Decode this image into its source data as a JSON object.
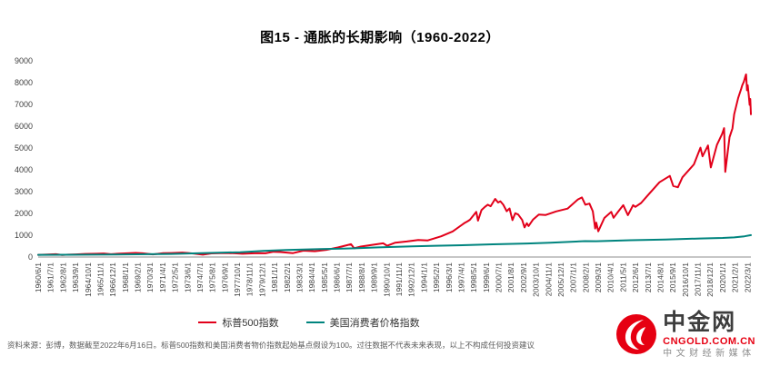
{
  "title": "图15 - 通胀的长期影响（1960-2022）",
  "chart_data": {
    "type": "line",
    "title": "图15 - 通胀的长期影响（1960-2022）",
    "grid": false,
    "legend_position": "bottom",
    "ylim": [
      0,
      9000
    ],
    "ytick_interval": 1000,
    "y_ticks": [
      0,
      1000,
      2000,
      3000,
      4000,
      5000,
      6000,
      7000,
      8000,
      9000
    ],
    "x_range": [
      1960.417,
      2022.458
    ],
    "x_tick_labels": [
      "1960/6/1",
      "1961/7/1",
      "1962/8/1",
      "1963/9/1",
      "1964/10/1",
      "1965/11/1",
      "1966/12/1",
      "1968/1/1",
      "1969/2/1",
      "1970/3/1",
      "1971/4/1",
      "1972/5/1",
      "1973/6/1",
      "1974/7/1",
      "1975/8/1",
      "1976/9/1",
      "1977/10/1",
      "1978/11/1",
      "1979/12/1",
      "1981/1/1",
      "1982/2/1",
      "1983/3/1",
      "1984/4/1",
      "1985/5/1",
      "1986/6/1",
      "1987/7/1",
      "1988/8/1",
      "1989/9/1",
      "1990/10/1",
      "1991/11/1",
      "1992/12/1",
      "1994/1/1",
      "1995/2/1",
      "1996/3/1",
      "1997/4/1",
      "1998/5/1",
      "1999/6/1",
      "2000/7/1",
      "2001/8/1",
      "2002/9/1",
      "2003/10/1",
      "2004/11/1",
      "2005/12/1",
      "2007/1/1",
      "2008/2/1",
      "2009/3/1",
      "2010/4/1",
      "2011/5/1",
      "2012/6/1",
      "2013/7/1",
      "2014/8/1",
      "2015/9/1",
      "2016/10/1",
      "2017/11/1",
      "2018/12/1",
      "2020/1/1",
      "2021/2/1",
      "2022/3/1"
    ],
    "base_value_note": "起始基点假设为100",
    "series": [
      {
        "name": "标普500指数",
        "color": "#e2001a",
        "width": 2,
        "points": [
          [
            1960.42,
            100
          ],
          [
            1961.0,
            110
          ],
          [
            1961.96,
            128
          ],
          [
            1962.5,
            95
          ],
          [
            1963.0,
            110
          ],
          [
            1963.7,
            122
          ],
          [
            1964.5,
            140
          ],
          [
            1965.5,
            148
          ],
          [
            1966.12,
            163
          ],
          [
            1966.75,
            130
          ],
          [
            1967.5,
            158
          ],
          [
            1968.9,
            188
          ],
          [
            1969.5,
            170
          ],
          [
            1970.4,
            122
          ],
          [
            1971.3,
            176
          ],
          [
            1972.0,
            182
          ],
          [
            1972.96,
            206
          ],
          [
            1973.5,
            182
          ],
          [
            1974.0,
            160
          ],
          [
            1974.75,
            110
          ],
          [
            1975.5,
            166
          ],
          [
            1976.7,
            184
          ],
          [
            1977.5,
            172
          ],
          [
            1978.2,
            152
          ],
          [
            1979.5,
            178
          ],
          [
            1980.2,
            172
          ],
          [
            1980.9,
            243
          ],
          [
            1981.5,
            230
          ],
          [
            1982.6,
            178
          ],
          [
            1983.5,
            290
          ],
          [
            1984.5,
            266
          ],
          [
            1985.5,
            330
          ],
          [
            1986.5,
            437
          ],
          [
            1987.65,
            588
          ],
          [
            1987.92,
            400
          ],
          [
            1988.5,
            478
          ],
          [
            1989.5,
            560
          ],
          [
            1990.45,
            628
          ],
          [
            1990.8,
            516
          ],
          [
            1991.5,
            660
          ],
          [
            1992.5,
            712
          ],
          [
            1993.5,
            782
          ],
          [
            1994.3,
            758
          ],
          [
            1995.5,
            950
          ],
          [
            1996.5,
            1175
          ],
          [
            1997.5,
            1550
          ],
          [
            1997.8,
            1640
          ],
          [
            1998.0,
            1710
          ],
          [
            1998.55,
            2070
          ],
          [
            1998.7,
            1671
          ],
          [
            1999.0,
            2150
          ],
          [
            1999.3,
            2300
          ],
          [
            1999.55,
            2400
          ],
          [
            1999.8,
            2330
          ],
          [
            2000.2,
            2665
          ],
          [
            2000.45,
            2500
          ],
          [
            2000.65,
            2560
          ],
          [
            2000.9,
            2400
          ],
          [
            2001.2,
            2100
          ],
          [
            2001.45,
            2230
          ],
          [
            2001.7,
            1690
          ],
          [
            2001.95,
            2010
          ],
          [
            2002.2,
            1950
          ],
          [
            2002.55,
            1700
          ],
          [
            2002.75,
            1360
          ],
          [
            2002.95,
            1550
          ],
          [
            2003.1,
            1420
          ],
          [
            2003.5,
            1720
          ],
          [
            2004.0,
            1950
          ],
          [
            2004.6,
            1930
          ],
          [
            2005.5,
            2090
          ],
          [
            2006.5,
            2220
          ],
          [
            2007.4,
            2640
          ],
          [
            2007.75,
            2733
          ],
          [
            2008.05,
            2400
          ],
          [
            2008.4,
            2450
          ],
          [
            2008.7,
            2100
          ],
          [
            2008.9,
            1310
          ],
          [
            2009.0,
            1580
          ],
          [
            2009.17,
            1180
          ],
          [
            2009.7,
            1790
          ],
          [
            2010.3,
            2070
          ],
          [
            2010.5,
            1800
          ],
          [
            2010.9,
            2080
          ],
          [
            2011.35,
            2380
          ],
          [
            2011.75,
            1920
          ],
          [
            2012.2,
            2380
          ],
          [
            2012.4,
            2300
          ],
          [
            2012.9,
            2480
          ],
          [
            2013.5,
            2840
          ],
          [
            2014.5,
            3430
          ],
          [
            2015.4,
            3720
          ],
          [
            2015.7,
            3260
          ],
          [
            2016.1,
            3200
          ],
          [
            2016.5,
            3660
          ],
          [
            2017.5,
            4250
          ],
          [
            2018.07,
            5016
          ],
          [
            2018.25,
            4620
          ],
          [
            2018.72,
            5117
          ],
          [
            2018.97,
            4110
          ],
          [
            2019.5,
            5140
          ],
          [
            2019.95,
            5640
          ],
          [
            2020.12,
            5913
          ],
          [
            2020.23,
            3910
          ],
          [
            2020.6,
            5500
          ],
          [
            2020.85,
            5900
          ],
          [
            2021.0,
            6550
          ],
          [
            2021.35,
            7300
          ],
          [
            2021.6,
            7700
          ],
          [
            2021.7,
            7870
          ],
          [
            2021.85,
            8050
          ],
          [
            2022.0,
            8330
          ],
          [
            2022.04,
            8380
          ],
          [
            2022.12,
            7650
          ],
          [
            2022.18,
            7880
          ],
          [
            2022.28,
            7350
          ],
          [
            2022.35,
            6980
          ],
          [
            2022.4,
            7250
          ],
          [
            2022.46,
            6550
          ]
        ]
      },
      {
        "name": "美国消费者价格指数",
        "color": "#00847e",
        "width": 2,
        "points": [
          [
            1960.42,
            100
          ],
          [
            1963,
            104
          ],
          [
            1965,
            107
          ],
          [
            1967,
            113
          ],
          [
            1970,
            131
          ],
          [
            1972,
            142
          ],
          [
            1975,
            182
          ],
          [
            1978,
            221
          ],
          [
            1980,
            279
          ],
          [
            1982,
            327
          ],
          [
            1985,
            364
          ],
          [
            1988,
            400
          ],
          [
            1990,
            443
          ],
          [
            1993,
            489
          ],
          [
            1995,
            515
          ],
          [
            1998,
            551
          ],
          [
            2000,
            583
          ],
          [
            2003,
            622
          ],
          [
            2005,
            659
          ],
          [
            2008,
            729
          ],
          [
            2009,
            724
          ],
          [
            2010,
            737
          ],
          [
            2012,
            772
          ],
          [
            2015,
            804
          ],
          [
            2018,
            851
          ],
          [
            2020,
            874
          ],
          [
            2021,
            901
          ],
          [
            2021.9,
            950
          ],
          [
            2022.46,
            1005
          ]
        ]
      }
    ]
  },
  "footer": {
    "source_note": "资料来源：彭博，数据截至2022年6月16日。标普500指数和美国消费者物价指数起始基点假设为100。过往数据不代表未来表现，以上不构成任何投资建议"
  },
  "brand": {
    "name": "中金网",
    "domain": "CNGOLD.COM.CN",
    "tagline": "中文财经新媒体",
    "red": "#e60012"
  }
}
